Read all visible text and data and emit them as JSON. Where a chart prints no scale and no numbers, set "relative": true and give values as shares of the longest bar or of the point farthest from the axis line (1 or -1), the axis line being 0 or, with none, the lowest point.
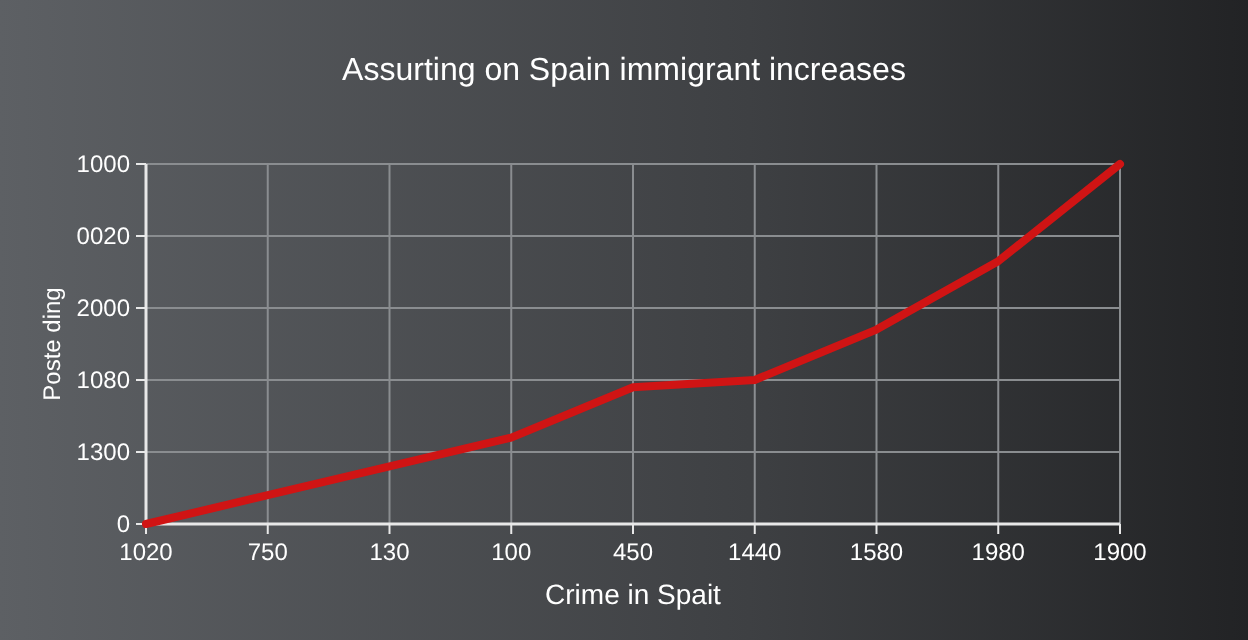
{
  "chart_data": {
    "type": "line",
    "title": "Assurting on Spain immigrant increases",
    "xlabel": "Crime in Spait",
    "ylabel": "Poste ding",
    "categories": [
      "1020",
      "750",
      "130",
      "100",
      "450",
      "1440",
      "1580",
      "1980",
      "1900"
    ],
    "relative": true,
    "annotations": [
      "0",
      "1300",
      "1080",
      "2000",
      "0020",
      "1000"
    ],
    "grid": true,
    "series": [
      {
        "color": "#d01414",
        "values": [
          0,
          0.08,
          0.16,
          0.24,
          0.38,
          0.4,
          0.54,
          0.73,
          1
        ]
      }
    ]
  }
}
